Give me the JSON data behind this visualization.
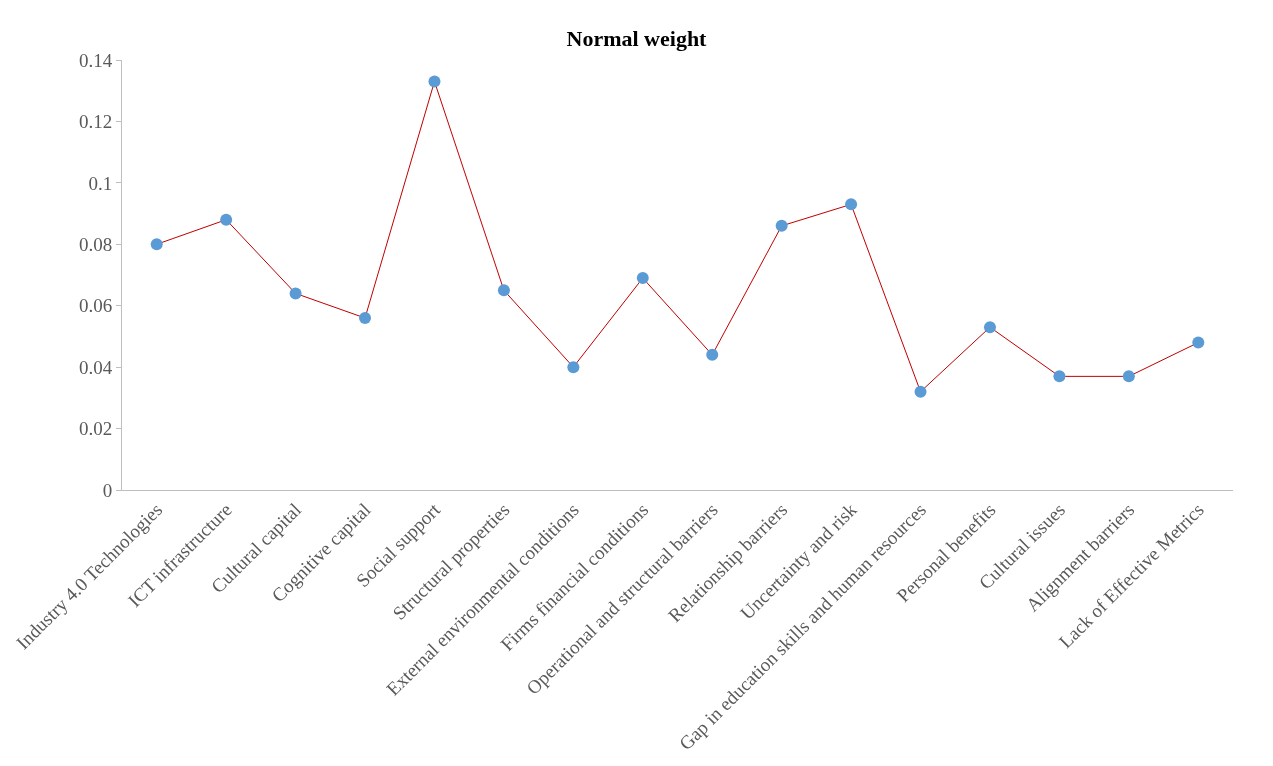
{
  "chart_data": {
    "type": "line",
    "title": "Normal weight",
    "categories": [
      "Industry 4.0 Technologies",
      "ICT infrastructure",
      "Cultural capital",
      "Cognitive capital",
      "Social support",
      "Structural properties",
      "External environmental conditions",
      "Firms financial conditions",
      "Operational and structural barriers",
      "Relationship barriers",
      "Uncertainty and risk",
      "Gap in education skills and human resources",
      "Personal benefits",
      "Cultural issues",
      "Alignment barriers",
      "Lack of Effective Metrics"
    ],
    "series": [
      {
        "color": "#c00000",
        "colors": [
          "#5b9bd5",
          "#5b9bd5",
          "#5b9bd5",
          "#5b9bd5",
          "#5b9bd5",
          "#5b9bd5",
          "#5b9bd5",
          "#5b9bd5",
          "#5b9bd5",
          "#5b9bd5",
          "#5b9bd5",
          "#5b9bd5",
          "#5b9bd5",
          "#5b9bd5",
          "#5b9bd5",
          "#5b9bd5"
        ],
        "values": [
          0.08,
          0.088,
          0.064,
          0.056,
          0.133,
          0.065,
          0.04,
          0.069,
          0.044,
          0.086,
          0.093,
          0.032,
          0.053,
          0.037,
          0.037,
          0.048
        ]
      }
    ],
    "ylim": [
      0,
      0.14
    ],
    "yticks": [
      0,
      0.02,
      0.04,
      0.06,
      0.08,
      {
        "value": 0.1,
        "label": "0.1"
      },
      0.12,
      0.14
    ],
    "marker": "circle",
    "line_style": "solid"
  }
}
